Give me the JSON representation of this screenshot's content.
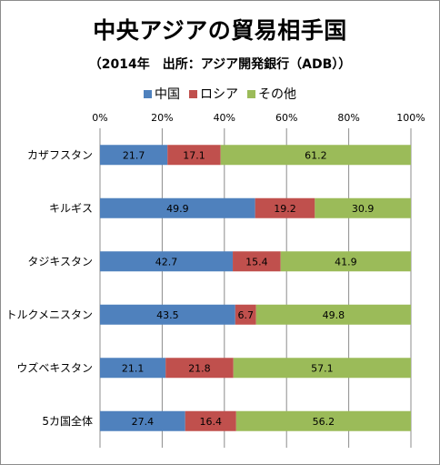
{
  "title": "中央アジアの貿易相手国",
  "subtitle": "（2014年　出所：アジア開発銀行（ADB））",
  "colors": {
    "china": "#4f81bd",
    "russia": "#c0504d",
    "other": "#9bbb59"
  },
  "chart_data": {
    "type": "bar",
    "orientation": "horizontal",
    "stacked": "percent",
    "categories": [
      "カザフスタン",
      "キルギス",
      "タジキスタン",
      "トルクメニスタン",
      "ウズベキスタン",
      "5カ国全体"
    ],
    "series": [
      {
        "name": "中国",
        "values": [
          21.7,
          49.9,
          42.7,
          43.5,
          21.1,
          27.4
        ]
      },
      {
        "name": "ロシア",
        "values": [
          17.1,
          19.2,
          15.4,
          6.7,
          21.8,
          16.4
        ]
      },
      {
        "name": "その他",
        "values": [
          61.2,
          30.9,
          41.9,
          49.8,
          57.1,
          56.2
        ]
      }
    ],
    "xticks": [
      "0%",
      "20%",
      "40%",
      "60%",
      "80%",
      "100%"
    ],
    "xlim": [
      0,
      100
    ],
    "grid": true,
    "legend": "top"
  }
}
